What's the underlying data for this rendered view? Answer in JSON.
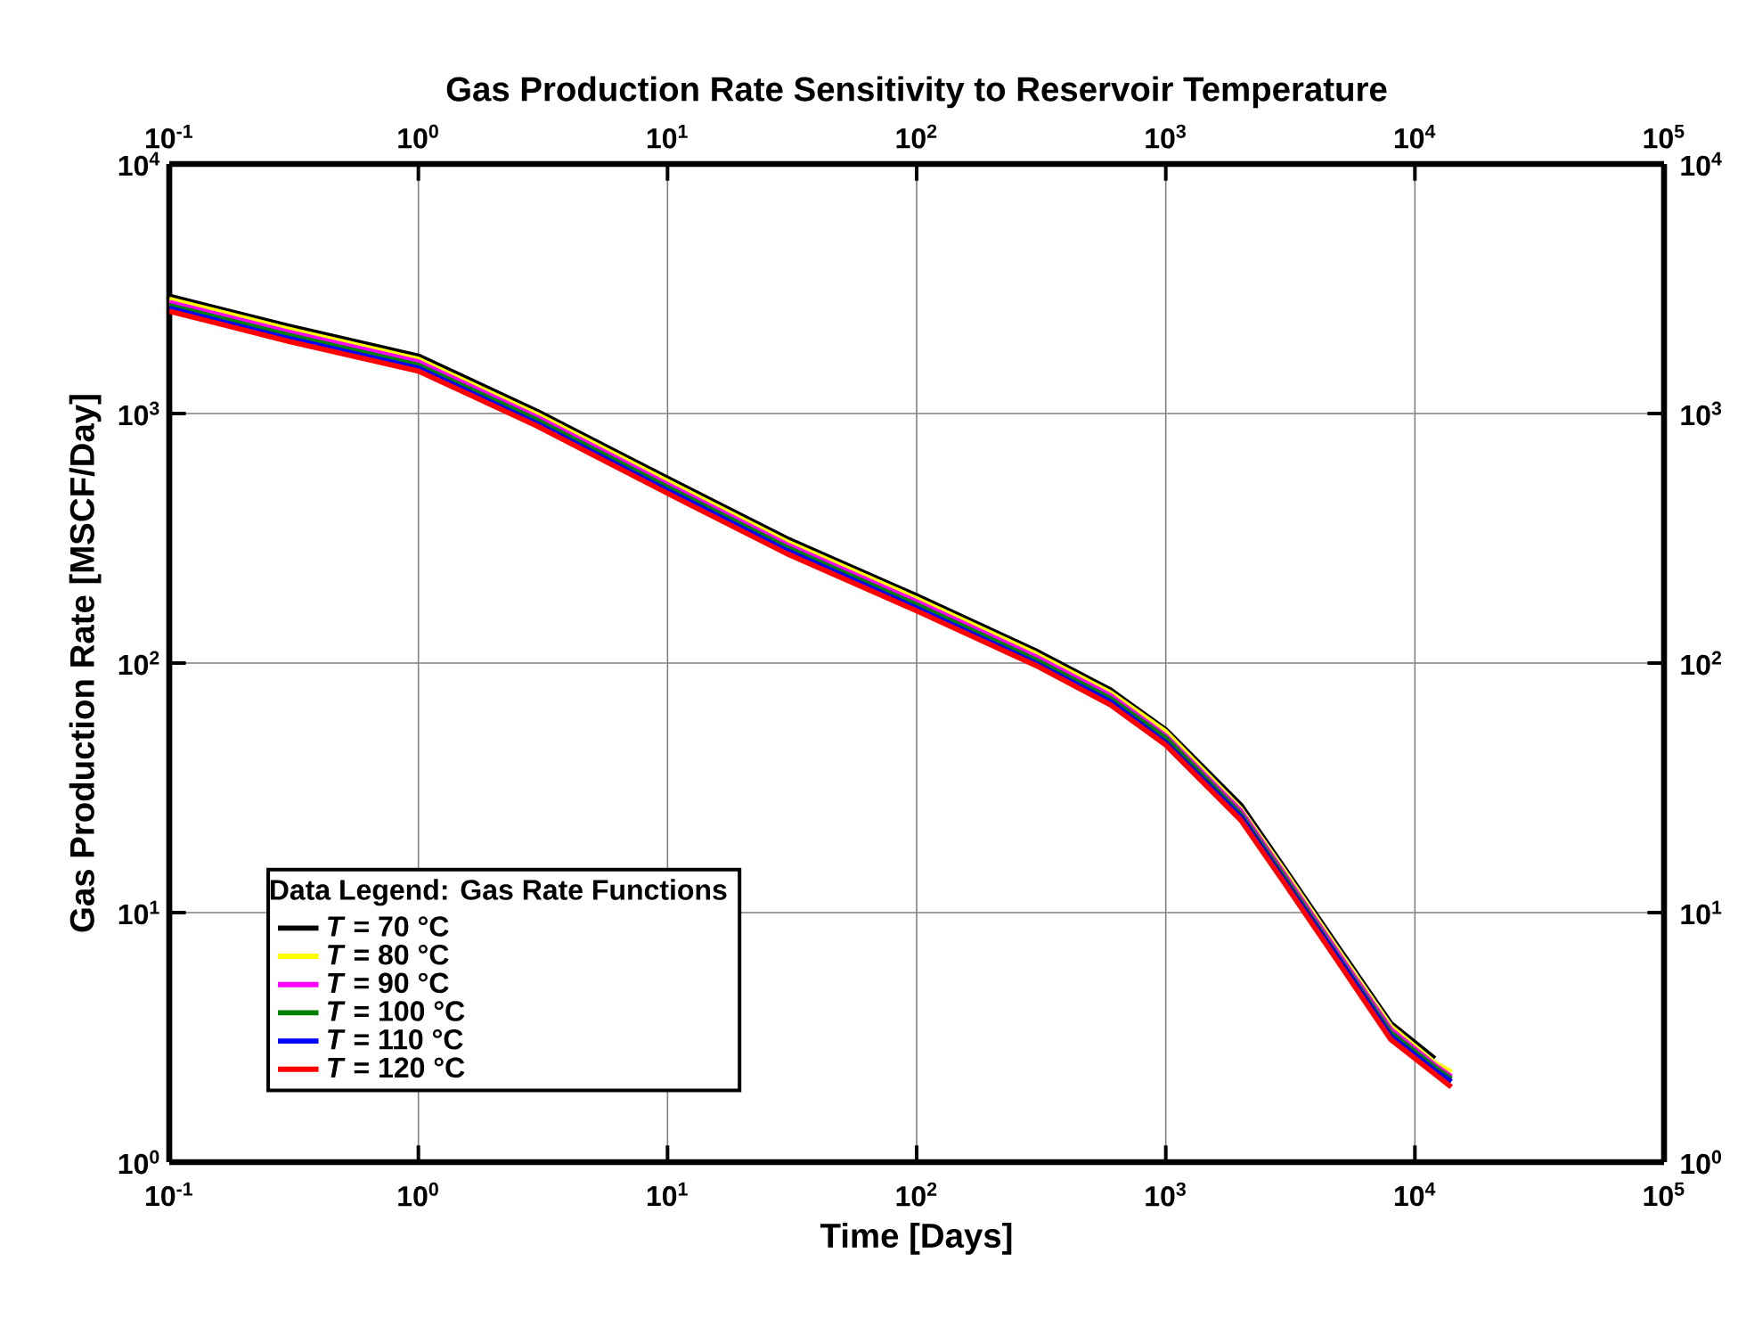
{
  "chart_data": {
    "type": "line",
    "title": "Gas Production Rate Sensitivity to Reservoir Temperature",
    "xlabel": "Time [Days]",
    "ylabel": "Gas Production Rate [MSCF/Day]",
    "log": "xy",
    "xlim": [
      0.1,
      100000
    ],
    "ylim": [
      1,
      10000
    ],
    "xticks": [
      {
        "value": 0.1,
        "label": "10$^{-1}$"
      },
      {
        "value": 1,
        "label": "10$^{0}$"
      },
      {
        "value": 10,
        "label": "10$^{1}$"
      },
      {
        "value": 100,
        "label": "10$^{2}$"
      },
      {
        "value": 1000,
        "label": "10$^{3}$"
      },
      {
        "value": 10000,
        "label": "10$^{4}$"
      },
      {
        "value": 100000,
        "label": "10$^{5}$"
      }
    ],
    "yticks": [
      {
        "value": 1,
        "label": "10$^{0}$"
      },
      {
        "value": 10,
        "label": "10$^{1}$"
      },
      {
        "value": 100,
        "label": "10$^{2}$"
      },
      {
        "value": 1000,
        "label": "10$^{3}$"
      },
      {
        "value": 10000,
        "label": "10$^{4}$"
      }
    ],
    "grid": true,
    "legend": "bottom left",
    "legend_title": "Data Legend: Gas Rate Functions",
    "line_style": "solid",
    "series": [
      {
        "name": "*T* = 70 °C",
        "color": "#000000",
        "x": [
          0.1,
          0.3,
          1,
          3,
          10,
          30,
          100,
          300,
          600,
          1000,
          2000,
          3000,
          5000,
          8000,
          12000
        ],
        "values": [
          2950,
          2240,
          1700,
          1020,
          550,
          316,
          186,
          112,
          78,
          54,
          27,
          15,
          7.1,
          3.6,
          2.6
        ]
      },
      {
        "name": "*T* = 80 °C",
        "color": "#ffff00",
        "x": [
          0.1,
          0.3,
          1,
          3,
          10,
          30,
          100,
          300,
          600,
          1000,
          2000,
          3000,
          5000,
          8000,
          12000,
          14000
        ],
        "values": [
          2870,
          2180,
          1650,
          990,
          535,
          307,
          181,
          109,
          76,
          53,
          26,
          14.6,
          6.9,
          3.5,
          2.5,
          2.3
        ]
      },
      {
        "name": "*T* = 90 °C",
        "color": "#ff00ff",
        "x": [
          0.1,
          0.3,
          1,
          3,
          10,
          30,
          100,
          300,
          600,
          1000,
          2000,
          3000,
          5000,
          8000,
          12000,
          14000
        ],
        "values": [
          2790,
          2120,
          1610,
          965,
          520,
          299,
          176,
          106,
          74,
          51,
          25.5,
          14.2,
          6.7,
          3.4,
          2.45,
          2.2
        ]
      },
      {
        "name": "*T* = 100 °C",
        "color": "#008000",
        "x": [
          0.1,
          0.3,
          1,
          3,
          10,
          30,
          100,
          300,
          600,
          1000,
          2000,
          3000,
          5000,
          8000,
          12000,
          14000
        ],
        "values": [
          2710,
          2060,
          1560,
          940,
          506,
          291,
          171,
          103,
          72,
          50,
          24.8,
          13.8,
          6.5,
          3.3,
          2.4,
          2.15
        ]
      },
      {
        "name": "*T* = 110 °C",
        "color": "#0000ff",
        "x": [
          0.1,
          0.3,
          1,
          3,
          10,
          30,
          100,
          300,
          600,
          1000,
          2000,
          3000,
          5000,
          8000,
          12000,
          14000
        ],
        "values": [
          2640,
          2000,
          1520,
          910,
          492,
          283,
          166,
          100,
          70,
          48,
          24.2,
          13.4,
          6.4,
          3.2,
          2.33,
          2.1
        ]
      },
      {
        "name": "*T* = 120 °C",
        "color": "#ff0000",
        "x": [
          0.1,
          0.3,
          1,
          3,
          10,
          30,
          100,
          300,
          600,
          1000,
          2000,
          3000,
          5000,
          8000,
          12000,
          14000
        ],
        "values": [
          2570,
          1950,
          1480,
          890,
          479,
          275,
          162,
          98,
          68,
          47,
          23.5,
          13.1,
          6.2,
          3.1,
          2.26,
          2.0
        ]
      }
    ]
  }
}
